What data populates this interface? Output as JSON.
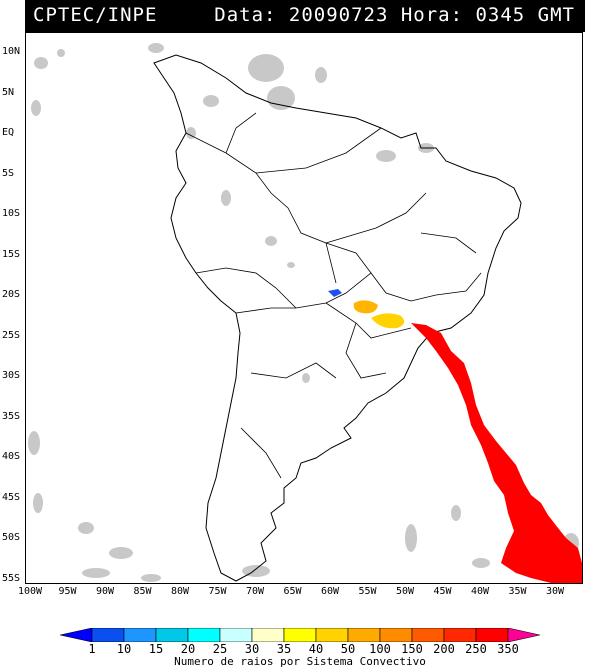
{
  "header": {
    "source": "CPTEC/INPE",
    "timestamp": "Data: 20090723 Hora: 0345 GMT"
  },
  "map": {
    "lat_labels": [
      "10N",
      "5N",
      "EQ",
      "5S",
      "10S",
      "15S",
      "20S",
      "25S",
      "30S",
      "35S",
      "40S",
      "45S",
      "50S",
      "55S"
    ],
    "lon_labels": [
      "100W",
      "95W",
      "90W",
      "85W",
      "80W",
      "75W",
      "70W",
      "65W",
      "60W",
      "55W",
      "50W",
      "45W",
      "40W",
      "35W",
      "30W"
    ],
    "cloud_color": "#c8c8c8",
    "coast_color": "#000000"
  },
  "legend": {
    "title": "Numero de raios por Sistema Convectivo",
    "ticks": [
      "1",
      "10",
      "15",
      "20",
      "25",
      "30",
      "35",
      "40",
      "50",
      "100",
      "150",
      "200",
      "250",
      "350"
    ],
    "colors": [
      "#0000ff",
      "#0a50f0",
      "#1e96ff",
      "#00c8e6",
      "#00ffff",
      "#c8ffff",
      "#ffffc8",
      "#ffff00",
      "#ffd200",
      "#ffaa00",
      "#ff8c00",
      "#ff5a00",
      "#ff2800",
      "#ff0000",
      "#ff0096"
    ]
  }
}
